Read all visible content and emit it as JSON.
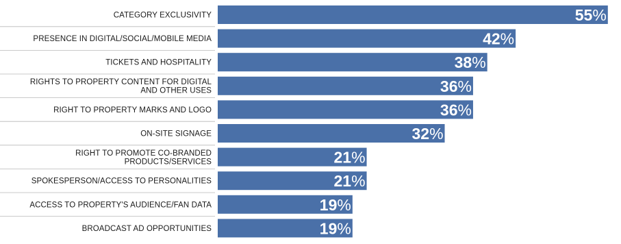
{
  "chart_data": {
    "type": "bar",
    "orientation": "horizontal",
    "categories": [
      "CATEGORY EXCLUSIVITY",
      "PRESENCE IN DIGITAL/SOCIAL/MOBILE MEDIA",
      "TICKETS AND HOSPITALITY",
      "RIGHTS TO PROPERTY CONTENT FOR DIGITAL AND OTHER USES",
      "RIGHT TO PROPERTY MARKS AND LOGO",
      "ON-SITE SIGNAGE",
      "RIGHT TO PROMOTE CO-BRANDED PRODUCTS/SERVICES",
      "SPOKESPERSON/ACCESS TO PERSONALITIES",
      "ACCESS TO PROPERTY'S AUDIENCE/FAN DATA",
      "BROADCAST AD OPPORTUNITIES"
    ],
    "label_lines": [
      [
        "CATEGORY EXCLUSIVITY"
      ],
      [
        "PRESENCE IN DIGITAL/SOCIAL/MOBILE MEDIA"
      ],
      [
        "TICKETS AND HOSPITALITY"
      ],
      [
        "RIGHTS TO PROPERTY CONTENT FOR DIGITAL",
        "AND OTHER USES"
      ],
      [
        "RIGHT TO PROPERTY MARKS AND LOGO"
      ],
      [
        "ON-SITE SIGNAGE"
      ],
      [
        "RIGHT TO PROMOTE CO-BRANDED",
        "PRODUCTS/SERVICES"
      ],
      [
        "SPOKESPERSON/ACCESS TO PERSONALITIES"
      ],
      [
        "ACCESS TO PROPERTY'S AUDIENCE/FAN DATA"
      ],
      [
        "BROADCAST AD OPPORTUNITIES"
      ]
    ],
    "values": [
      55,
      42,
      38,
      36,
      36,
      32,
      21,
      21,
      19,
      19
    ],
    "value_suffix": "%",
    "xlim": [
      0,
      100
    ],
    "grid": false,
    "colors": {
      "bar": "#4a70a8",
      "value_text": "#ffffff",
      "separator": "#b8b8b8",
      "label_text": "#1a1a1a"
    }
  }
}
